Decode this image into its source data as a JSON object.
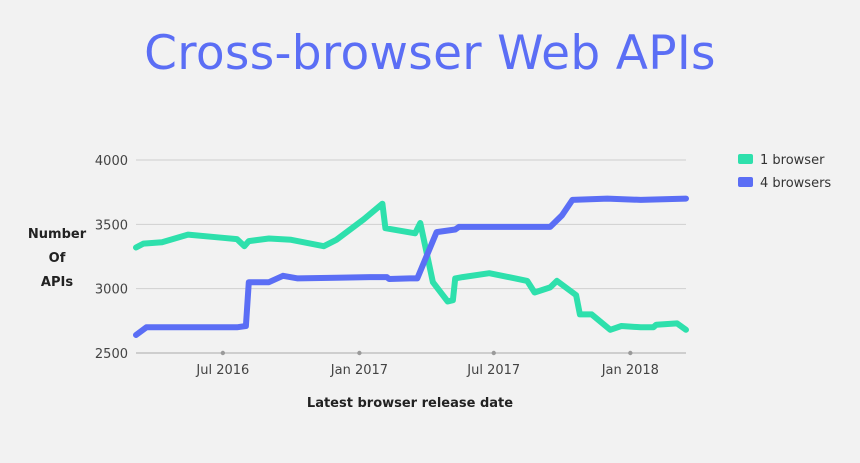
{
  "chart_data": {
    "type": "line",
    "title": "Cross-browser Web APIs",
    "xlabel": "Latest browser release date",
    "ylabel_lines": [
      "Number",
      "Of",
      "APIs"
    ],
    "x_ticks": [
      {
        "date": "2016-07-01",
        "label": "Jul 2016"
      },
      {
        "date": "2017-01-01",
        "label": "Jan 2017"
      },
      {
        "date": "2017-07-01",
        "label": "Jul 2017"
      },
      {
        "date": "2018-01-01",
        "label": "Jan 2018"
      }
    ],
    "y_ticks": [
      2500,
      3000,
      3500,
      4000
    ],
    "ylim": [
      2500,
      4000
    ],
    "xlim": [
      "2016-03-06",
      "2018-03-17"
    ],
    "grid": true,
    "legend_position": "right",
    "series": [
      {
        "name": "1 browser",
        "color": "#2ee0ac",
        "points": [
          [
            "2016-03-06",
            3320
          ],
          [
            "2016-03-16",
            3350
          ],
          [
            "2016-04-10",
            3360
          ],
          [
            "2016-05-15",
            3420
          ],
          [
            "2016-07-01",
            3395
          ],
          [
            "2016-07-20",
            3385
          ],
          [
            "2016-07-30",
            3330
          ],
          [
            "2016-08-05",
            3370
          ],
          [
            "2016-09-01",
            3390
          ],
          [
            "2016-10-01",
            3380
          ],
          [
            "2016-11-14",
            3330
          ],
          [
            "2016-12-01",
            3380
          ],
          [
            "2017-01-07",
            3540
          ],
          [
            "2017-02-01",
            3660
          ],
          [
            "2017-02-05",
            3470
          ],
          [
            "2017-03-17",
            3430
          ],
          [
            "2017-03-24",
            3510
          ],
          [
            "2017-04-10",
            3050
          ],
          [
            "2017-04-30",
            2900
          ],
          [
            "2017-05-07",
            2910
          ],
          [
            "2017-05-10",
            3080
          ],
          [
            "2017-05-20",
            3090
          ],
          [
            "2017-06-25",
            3120
          ],
          [
            "2017-07-30",
            3080
          ],
          [
            "2017-08-15",
            3060
          ],
          [
            "2017-08-25",
            2970
          ],
          [
            "2017-09-15",
            3010
          ],
          [
            "2017-09-24",
            3060
          ],
          [
            "2017-10-20",
            2950
          ],
          [
            "2017-10-25",
            2800
          ],
          [
            "2017-11-10",
            2800
          ],
          [
            "2017-12-05",
            2680
          ],
          [
            "2017-12-20",
            2710
          ],
          [
            "2018-01-15",
            2700
          ],
          [
            "2018-02-01",
            2700
          ],
          [
            "2018-02-05",
            2720
          ],
          [
            "2018-03-05",
            2730
          ],
          [
            "2018-03-17",
            2680
          ]
        ]
      },
      {
        "name": "4 browsers",
        "color": "#5b6ef5",
        "points": [
          [
            "2016-03-06",
            2640
          ],
          [
            "2016-03-20",
            2700
          ],
          [
            "2016-05-15",
            2700
          ],
          [
            "2016-07-01",
            2700
          ],
          [
            "2016-07-20",
            2700
          ],
          [
            "2016-08-01",
            2710
          ],
          [
            "2016-08-05",
            3050
          ],
          [
            "2016-09-01",
            3050
          ],
          [
            "2016-09-20",
            3100
          ],
          [
            "2016-10-10",
            3080
          ],
          [
            "2016-12-01",
            3085
          ],
          [
            "2017-01-15",
            3090
          ],
          [
            "2017-02-07",
            3090
          ],
          [
            "2017-02-10",
            3075
          ],
          [
            "2017-03-10",
            3080
          ],
          [
            "2017-03-20",
            3080
          ],
          [
            "2017-04-15",
            3440
          ],
          [
            "2017-05-10",
            3460
          ],
          [
            "2017-05-15",
            3480
          ],
          [
            "2017-07-01",
            3480
          ],
          [
            "2017-09-15",
            3480
          ],
          [
            "2017-10-01",
            3570
          ],
          [
            "2017-10-15",
            3690
          ],
          [
            "2017-12-01",
            3700
          ],
          [
            "2018-01-15",
            3690
          ],
          [
            "2018-03-17",
            3700
          ]
        ]
      }
    ]
  }
}
